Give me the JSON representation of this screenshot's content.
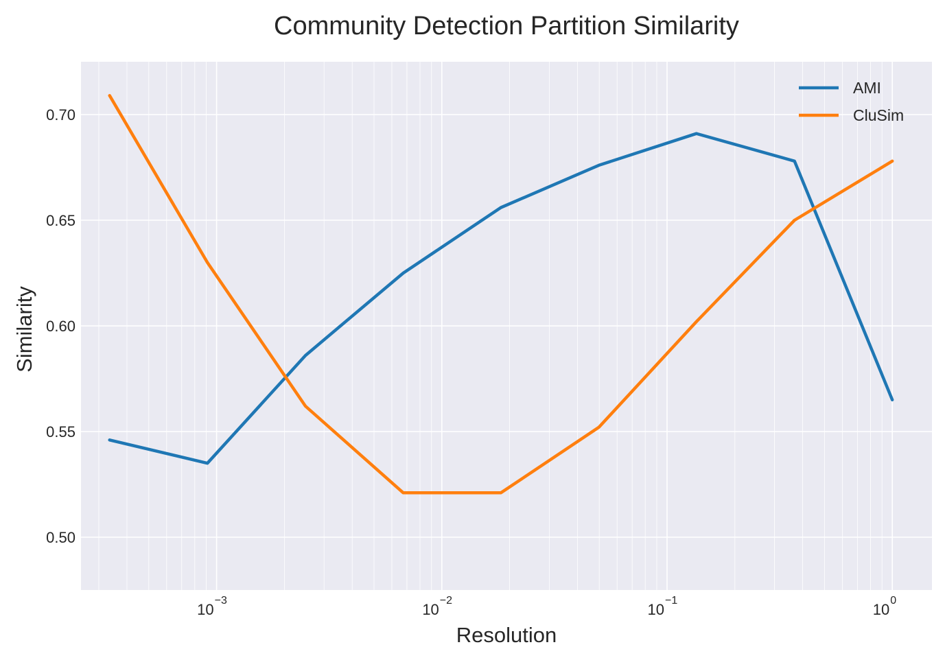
{
  "chart_data": {
    "type": "line",
    "title": "Community Detection Partition Similarity",
    "xlabel": "Resolution",
    "ylabel": "Similarity",
    "xscale": "log",
    "xlim": [
      0.00025,
      1.5
    ],
    "ylim": [
      0.475,
      0.725
    ],
    "x_ticks": [
      {
        "value": 0.001,
        "base": "10",
        "exp": "−3"
      },
      {
        "value": 0.01,
        "base": "10",
        "exp": "−2"
      },
      {
        "value": 0.1,
        "base": "10",
        "exp": "−1"
      },
      {
        "value": 1,
        "base": "10",
        "exp": "0"
      }
    ],
    "y_ticks": [
      {
        "value": 0.5,
        "label": "0.50"
      },
      {
        "value": 0.55,
        "label": "0.55"
      },
      {
        "value": 0.6,
        "label": "0.60"
      },
      {
        "value": 0.65,
        "label": "0.65"
      },
      {
        "value": 0.7,
        "label": "0.70"
      }
    ],
    "x": [
      0.000335,
      0.00091,
      0.00248,
      0.00674,
      0.0183,
      0.0498,
      0.135,
      0.368,
      1.0
    ],
    "series": [
      {
        "name": "AMI",
        "color": "#1f77b4",
        "values": [
          0.546,
          0.535,
          0.586,
          0.625,
          0.656,
          0.676,
          0.691,
          0.678,
          0.565
        ]
      },
      {
        "name": "CluSim",
        "color": "#ff7f0e",
        "values": [
          0.709,
          0.63,
          0.562,
          0.521,
          0.521,
          0.552,
          0.602,
          0.65,
          0.678
        ]
      }
    ],
    "grid": true,
    "legend_position": "top-right",
    "background_color": "#eaeaf2",
    "grid_color": "#ffffff"
  }
}
